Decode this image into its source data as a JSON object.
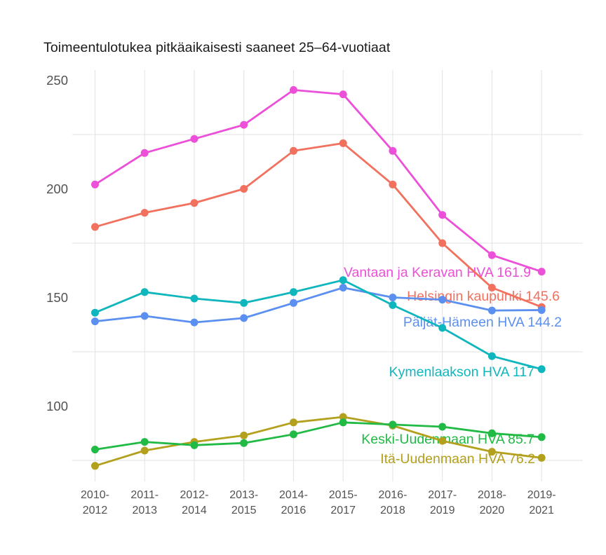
{
  "title": "Toimeentulotukea pitkäaikaisesti saaneet 25–64-vuotiaat",
  "chart_data": {
    "type": "line",
    "title": "Toimeentulotukea pitkäaikaisesti saaneet 25–64-vuotiaat",
    "xlabel": "",
    "ylabel": "",
    "categories": [
      "2010-2012",
      "2011-2013",
      "2012-2014",
      "2013-2015",
      "2014-2016",
      "2015-2017",
      "2016-2018",
      "2017-2019",
      "2018-2020",
      "2019-2021"
    ],
    "yticks": [
      100,
      150,
      200,
      250
    ],
    "grid_y_values": [
      75,
      125,
      175,
      225
    ],
    "ylim": [
      65,
      255
    ],
    "grid": "light gray vertical line per category; light gray horizontal lines at 75/125/175/225",
    "legend_position": "inline labels right-aligned near last data point",
    "axis_text_color": "#525252",
    "grid_color": "#e2e2e2",
    "series": [
      {
        "name": "Vantaan ja Keravan HVA",
        "label": "Vantaan ja Keravan HVA 161.9",
        "end_value": 161.9,
        "color": "#ec4fd8",
        "values": [
          202,
          216.5,
          223,
          229.5,
          245.5,
          243.5,
          217.5,
          188,
          169.5,
          161.9
        ]
      },
      {
        "name": "Helsingin kaupunki",
        "label": "Helsingin kaupunki 145.6",
        "end_value": 145.6,
        "color": "#f2705e",
        "values": [
          182.5,
          189,
          193.5,
          200,
          217.5,
          221,
          202,
          175,
          154.5,
          145.6
        ]
      },
      {
        "name": "Päijät-Hämeen HVA",
        "label": "Päijät-Hämeen HVA 144.2",
        "end_value": 144.2,
        "color": "#5c90f0",
        "values": [
          139,
          141.5,
          138.5,
          140.5,
          147.5,
          154.5,
          150,
          149,
          144,
          144.2
        ]
      },
      {
        "name": "Kymenlaakson HVA",
        "label": "Kymenlaakson HVA 117",
        "end_value": 117,
        "color": "#10b6bd",
        "values": [
          143,
          152.5,
          149.5,
          147.5,
          152.5,
          158,
          146.5,
          136,
          123,
          117
        ]
      },
      {
        "name": "Keski-Uudenmaan HVA",
        "label": "Keski-Uudenmaan HVA 85.7",
        "end_value": 85.7,
        "color": "#21ba45",
        "values": [
          80,
          83.5,
          82,
          83,
          87,
          92.5,
          91.5,
          90.5,
          87.5,
          85.7
        ]
      },
      {
        "name": "Itä-Uudenmaan HVA",
        "label": "Itä-Uudenmaan HVA 76.2",
        "end_value": 76.2,
        "color": "#b3a01d",
        "values": [
          72.5,
          79.5,
          83.5,
          86.5,
          92.5,
          95,
          91,
          84,
          79,
          76.2
        ]
      }
    ]
  }
}
